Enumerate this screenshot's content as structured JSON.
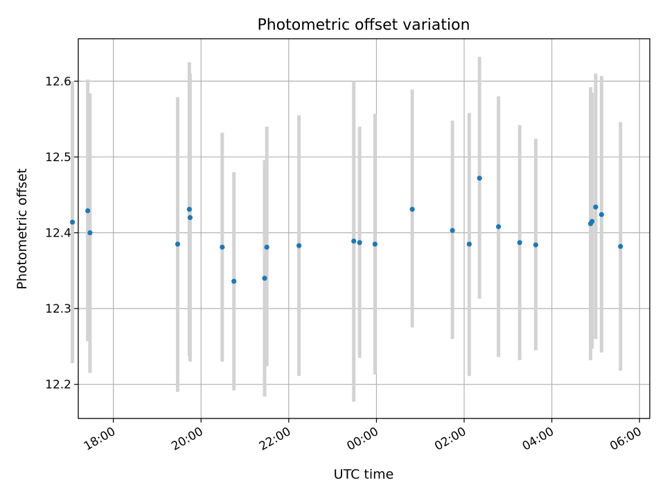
{
  "chart_data": {
    "type": "scatter",
    "title": "Photometric offset variation",
    "xlabel": "UTC time",
    "ylabel": "Photometric offset",
    "x_ticks": [
      "18:00",
      "20:00",
      "22:00",
      "00:00",
      "02:00",
      "04:00",
      "06:00"
    ],
    "y_ticks": [
      "12.2",
      "12.3",
      "12.4",
      "12.5",
      "12.6"
    ],
    "xlim": [
      "17:12",
      "06:14"
    ],
    "ylim": [
      12.155,
      12.656
    ],
    "grid": true,
    "colors": {
      "points": "#1f77b4",
      "errorbars": "#d3d3d3",
      "grid": "#b0b0b0"
    },
    "points": [
      {
        "x": "17:04",
        "y": 12.414,
        "ylow": 12.228,
        "yhigh": 12.6
      },
      {
        "x": "17:25",
        "y": 12.429,
        "ylow": 12.257,
        "yhigh": 12.602
      },
      {
        "x": "17:28",
        "y": 12.4,
        "ylow": 12.215,
        "yhigh": 12.584
      },
      {
        "x": "19:28",
        "y": 12.385,
        "ylow": 12.19,
        "yhigh": 12.579
      },
      {
        "x": "19:44",
        "y": 12.431,
        "ylow": 12.237,
        "yhigh": 12.625
      },
      {
        "x": "19:45",
        "y": 12.42,
        "ylow": 12.23,
        "yhigh": 12.61
      },
      {
        "x": "20:29",
        "y": 12.381,
        "ylow": 12.23,
        "yhigh": 12.532
      },
      {
        "x": "20:45",
        "y": 12.336,
        "ylow": 12.192,
        "yhigh": 12.48
      },
      {
        "x": "21:27",
        "y": 12.34,
        "ylow": 12.184,
        "yhigh": 12.496
      },
      {
        "x": "21:30",
        "y": 12.381,
        "ylow": 12.224,
        "yhigh": 12.54
      },
      {
        "x": "22:14",
        "y": 12.383,
        "ylow": 12.211,
        "yhigh": 12.555
      },
      {
        "x": "23:29",
        "y": 12.389,
        "ylow": 12.177,
        "yhigh": 12.6
      },
      {
        "x": "23:37",
        "y": 12.387,
        "ylow": 12.235,
        "yhigh": 12.54
      },
      {
        "x": "23:58",
        "y": 12.385,
        "ylow": 12.213,
        "yhigh": 12.557
      },
      {
        "x": "00:49",
        "y": 12.431,
        "ylow": 12.275,
        "yhigh": 12.589
      },
      {
        "x": "01:44",
        "y": 12.403,
        "ylow": 12.26,
        "yhigh": 12.548
      },
      {
        "x": "02:07",
        "y": 12.385,
        "ylow": 12.211,
        "yhigh": 12.558
      },
      {
        "x": "02:21",
        "y": 12.472,
        "ylow": 12.313,
        "yhigh": 12.632
      },
      {
        "x": "02:47",
        "y": 12.408,
        "ylow": 12.236,
        "yhigh": 12.58
      },
      {
        "x": "03:16",
        "y": 12.387,
        "ylow": 12.232,
        "yhigh": 12.542
      },
      {
        "x": "03:38",
        "y": 12.384,
        "ylow": 12.245,
        "yhigh": 12.524
      },
      {
        "x": "04:53",
        "y": 12.412,
        "ylow": 12.232,
        "yhigh": 12.592
      },
      {
        "x": "04:55",
        "y": 12.415,
        "ylow": 12.247,
        "yhigh": 12.585
      },
      {
        "x": "05:00",
        "y": 12.434,
        "ylow": 12.26,
        "yhigh": 12.61
      },
      {
        "x": "05:08",
        "y": 12.424,
        "ylow": 12.242,
        "yhigh": 12.607
      },
      {
        "x": "05:34",
        "y": 12.382,
        "ylow": 12.218,
        "yhigh": 12.546
      }
    ]
  }
}
